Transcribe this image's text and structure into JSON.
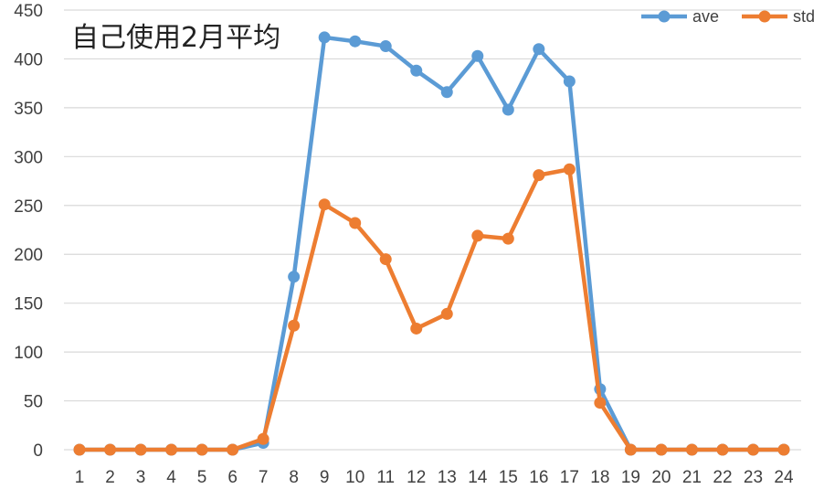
{
  "chart_data": {
    "type": "line",
    "title": "自己使用2月平均",
    "xlabel": "",
    "ylabel": "",
    "categories": [
      "1",
      "2",
      "3",
      "4",
      "5",
      "6",
      "7",
      "8",
      "9",
      "10",
      "11",
      "12",
      "13",
      "14",
      "15",
      "16",
      "17",
      "18",
      "19",
      "20",
      "21",
      "22",
      "23",
      "24"
    ],
    "ylim": [
      0,
      450
    ],
    "yticks": [
      0,
      50,
      100,
      150,
      200,
      250,
      300,
      350,
      400,
      450
    ],
    "grid": true,
    "legend_position": "top-right",
    "series": [
      {
        "name": "ave",
        "color": "#5B9BD5",
        "values": [
          0,
          0,
          0,
          0,
          0,
          0,
          7,
          177,
          422,
          418,
          413,
          388,
          366,
          403,
          348,
          410,
          377,
          62,
          0,
          0,
          0,
          0,
          0,
          0
        ]
      },
      {
        "name": "std",
        "color": "#ED7D31",
        "values": [
          0,
          0,
          0,
          0,
          0,
          0,
          11,
          127,
          251,
          232,
          195,
          124,
          139,
          219,
          216,
          281,
          287,
          48,
          0,
          0,
          0,
          0,
          0,
          0
        ]
      }
    ]
  }
}
